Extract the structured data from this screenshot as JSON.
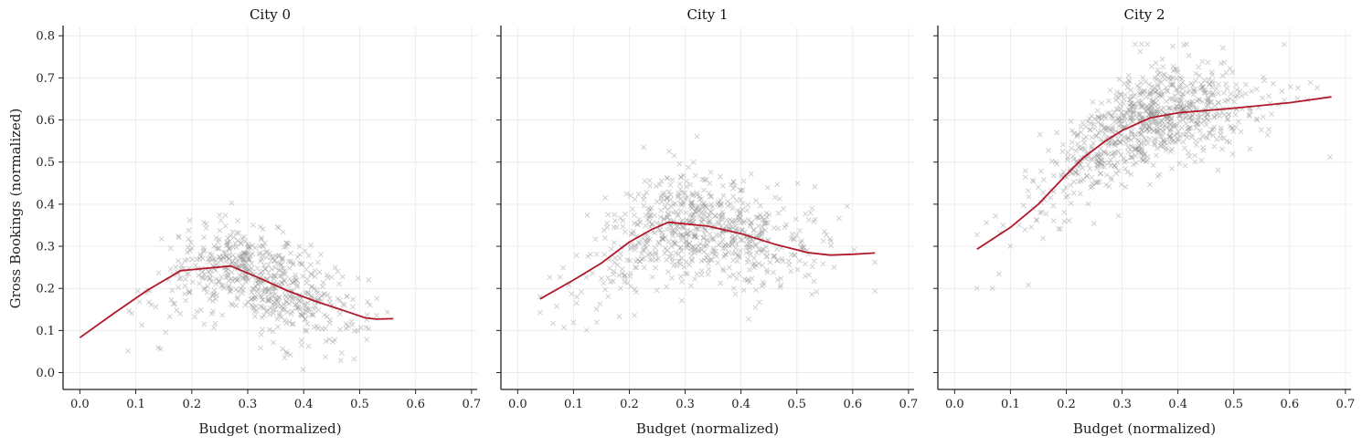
{
  "chart_data": [
    {
      "type": "scatter",
      "title": "City 0",
      "xlabel": "Budget (normalized)",
      "ylabel": "Gross Bookings (normalized)",
      "xlim": [
        -0.03,
        0.71
      ],
      "ylim": [
        -0.04,
        0.82
      ],
      "xticks": [
        "0.0",
        "0.1",
        "0.2",
        "0.3",
        "0.4",
        "0.5",
        "0.6",
        "0.7"
      ],
      "yticks": [
        "0.0",
        "0.1",
        "0.2",
        "0.3",
        "0.4",
        "0.5",
        "0.6",
        "0.7",
        "0.8"
      ],
      "scatter_cloud": {
        "n": 650,
        "x_mean": 0.32,
        "x_sd": 0.09,
        "x_min": 0.0,
        "x_max": 0.56,
        "y_sd": 0.055,
        "y_min": 0.0
      },
      "trend": {
        "x": [
          0.0,
          0.06,
          0.12,
          0.18,
          0.22,
          0.27,
          0.32,
          0.37,
          0.42,
          0.47,
          0.51,
          0.53,
          0.56
        ],
        "y": [
          0.083,
          0.14,
          0.195,
          0.242,
          0.247,
          0.253,
          0.225,
          0.195,
          0.17,
          0.148,
          0.13,
          0.127,
          0.128
        ]
      },
      "colors": {
        "points": "#8c8c8c",
        "trend": "#b2182b"
      }
    },
    {
      "type": "scatter",
      "title": "City 1",
      "xlabel": "Budget (normalized)",
      "ylabel": "",
      "xlim": [
        -0.03,
        0.71
      ],
      "ylim": [
        -0.04,
        0.82
      ],
      "xticks": [
        "0.0",
        "0.1",
        "0.2",
        "0.3",
        "0.4",
        "0.5",
        "0.6",
        "0.7"
      ],
      "yticks": [],
      "scatter_cloud": {
        "n": 750,
        "x_mean": 0.33,
        "x_sd": 0.1,
        "x_min": 0.04,
        "x_max": 0.64,
        "y_sd": 0.065,
        "y_min": 0.1
      },
      "trend": {
        "x": [
          0.04,
          0.1,
          0.15,
          0.2,
          0.24,
          0.27,
          0.34,
          0.4,
          0.46,
          0.52,
          0.56,
          0.6,
          0.64
        ],
        "y": [
          0.175,
          0.22,
          0.26,
          0.31,
          0.34,
          0.357,
          0.348,
          0.33,
          0.305,
          0.285,
          0.279,
          0.281,
          0.284
        ]
      },
      "colors": {
        "points": "#8c8c8c",
        "trend": "#b2182b"
      }
    },
    {
      "type": "scatter",
      "title": "City 2",
      "xlabel": "Budget (normalized)",
      "ylabel": "",
      "xlim": [
        -0.03,
        0.71
      ],
      "ylim": [
        -0.04,
        0.82
      ],
      "xticks": [
        "0.0",
        "0.1",
        "0.2",
        "0.3",
        "0.4",
        "0.5",
        "0.6",
        "0.7"
      ],
      "yticks": [],
      "scatter_cloud": {
        "n": 900,
        "x_mean": 0.35,
        "x_sd": 0.1,
        "x_min": 0.04,
        "x_max": 0.68,
        "y_sd": 0.06,
        "y_min": 0.2
      },
      "trend": {
        "x": [
          0.04,
          0.1,
          0.15,
          0.2,
          0.23,
          0.27,
          0.3,
          0.35,
          0.4,
          0.5,
          0.6,
          0.675
        ],
        "y": [
          0.293,
          0.345,
          0.4,
          0.47,
          0.51,
          0.55,
          0.575,
          0.605,
          0.617,
          0.628,
          0.641,
          0.655
        ]
      },
      "colors": {
        "points": "#8c8c8c",
        "trend": "#b2182b"
      }
    }
  ]
}
